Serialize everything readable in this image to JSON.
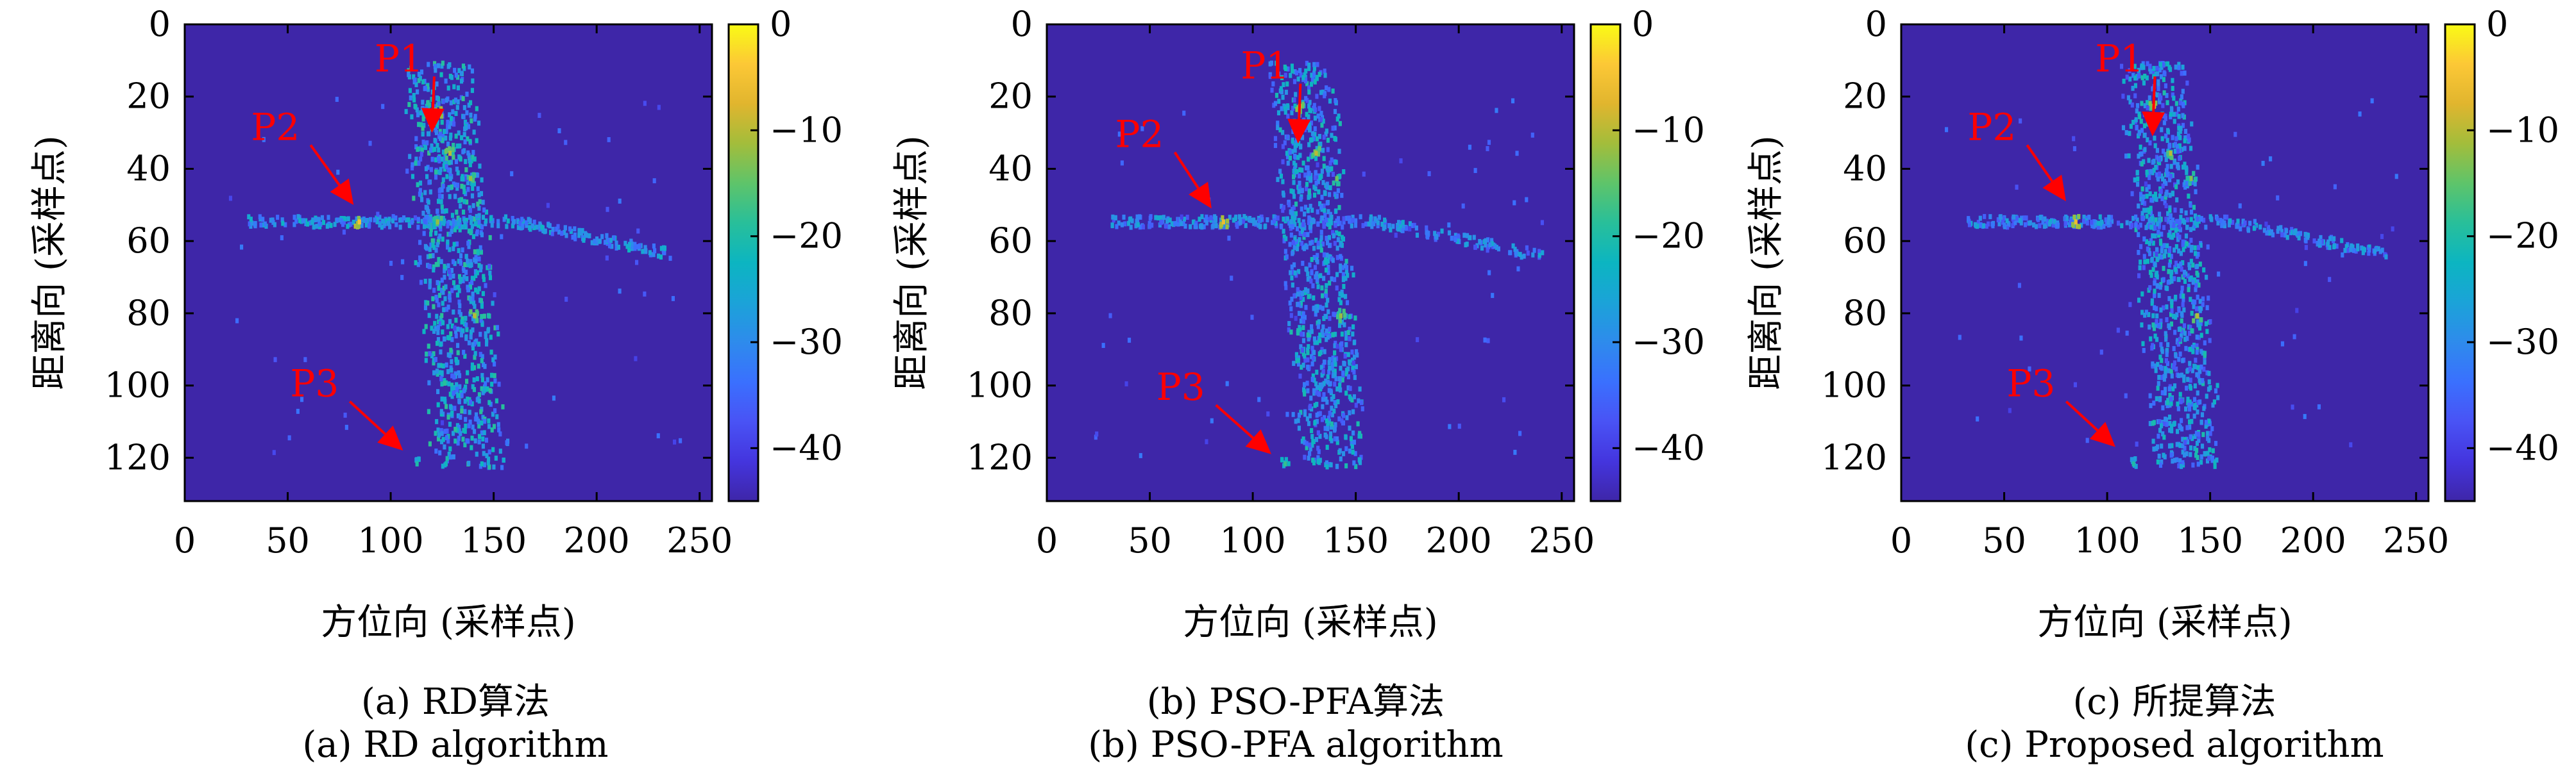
{
  "chart_data": [
    {
      "type": "heatmap",
      "caption_cn": "(a) RD算法",
      "caption_en": "(a) RD algorithm",
      "xlabel": "方位向 (采样点)",
      "ylabel": "距离向 (采样点)",
      "xlim": [
        0,
        256
      ],
      "ylim": [
        132,
        0
      ],
      "xticks": [
        0,
        50,
        100,
        150,
        200,
        250
      ],
      "yticks": [
        0,
        20,
        40,
        60,
        80,
        100,
        120
      ],
      "colorbar": {
        "range": [
          -45,
          0
        ],
        "ticks": [
          0,
          -10,
          -20,
          -30,
          -40
        ],
        "colormap": "parula"
      },
      "background_db": -45,
      "annotations": [
        {
          "label": "P1",
          "target": [
            120,
            30
          ],
          "text_at": [
            104,
            13
          ]
        },
        {
          "label": "P2",
          "target": [
            82,
            50
          ],
          "text_at": [
            44,
            32
          ]
        },
        {
          "label": "P3",
          "target": [
            106,
            118
          ],
          "text_at": [
            63,
            103
          ]
        }
      ],
      "features": {
        "fuselage": {
          "x": [
            110,
            150
          ],
          "y": [
            10,
            122
          ],
          "level_db": -22
        },
        "wing": {
          "x": [
            30,
            235
          ],
          "y": 54,
          "level_db": -24
        },
        "bright_points": [
          {
            "x": 122,
            "y": 24,
            "value_db": -6
          },
          {
            "x": 84,
            "y": 54,
            "value_db": -5
          },
          {
            "x": 128,
            "y": 35,
            "value_db": -10
          },
          {
            "x": 138,
            "y": 42,
            "value_db": -12
          },
          {
            "x": 140,
            "y": 80,
            "value_db": -10
          },
          {
            "x": 122,
            "y": 54,
            "value_db": -12
          },
          {
            "x": 112,
            "y": 121,
            "value_db": -20
          }
        ]
      }
    },
    {
      "type": "heatmap",
      "caption_cn": "(b) PSO-PFA算法",
      "caption_en": "(b) PSO-PFA algorithm",
      "xlabel": "方位向 (采样点)",
      "ylabel": "距离向 (采样点)",
      "xlim": [
        0,
        256
      ],
      "ylim": [
        132,
        0
      ],
      "xticks": [
        0,
        50,
        100,
        150,
        200,
        250
      ],
      "yticks": [
        0,
        20,
        40,
        60,
        80,
        100,
        120
      ],
      "colorbar": {
        "range": [
          -45,
          0
        ],
        "ticks": [
          0,
          -10,
          -20,
          -30,
          -40
        ],
        "colormap": "parula"
      },
      "background_db": -45,
      "annotations": [
        {
          "label": "P1",
          "target": [
            122,
            33
          ],
          "text_at": [
            106,
            15
          ]
        },
        {
          "label": "P2",
          "target": [
            80,
            51
          ],
          "text_at": [
            45,
            34
          ]
        },
        {
          "label": "P3",
          "target": [
            109,
            119
          ],
          "text_at": [
            65,
            104
          ]
        }
      ],
      "features": {
        "fuselage": {
          "x": [
            114,
            150
          ],
          "y": [
            10,
            122
          ],
          "level_db": -24
        },
        "wing": {
          "x": [
            30,
            240
          ],
          "y": 54,
          "level_db": -26
        },
        "bright_points": [
          {
            "x": 122,
            "y": 22,
            "value_db": -8
          },
          {
            "x": 85,
            "y": 54,
            "value_db": -6
          },
          {
            "x": 130,
            "y": 35,
            "value_db": -10
          },
          {
            "x": 140,
            "y": 42,
            "value_db": -14
          },
          {
            "x": 142,
            "y": 80,
            "value_db": -12
          },
          {
            "x": 115,
            "y": 121,
            "value_db": -18
          }
        ]
      }
    },
    {
      "type": "heatmap",
      "caption_cn": "(c) 所提算法",
      "caption_en": "(c) Proposed algorithm",
      "xlabel": "方位向 (采样点)",
      "ylabel": "距离向 (采样点)",
      "xlim": [
        0,
        256
      ],
      "ylim": [
        132,
        0
      ],
      "xticks": [
        0,
        50,
        100,
        150,
        200,
        250
      ],
      "yticks": [
        0,
        20,
        40,
        60,
        80,
        100,
        120
      ],
      "colorbar": {
        "range": [
          -45,
          0
        ],
        "ticks": [
          0,
          -10,
          -20,
          -30,
          -40
        ],
        "colormap": "parula"
      },
      "background_db": -45,
      "annotations": [
        {
          "label": "P1",
          "target": [
            122,
            31
          ],
          "text_at": [
            106,
            13
          ]
        },
        {
          "label": "P2",
          "target": [
            80,
            49
          ],
          "text_at": [
            44,
            32
          ]
        },
        {
          "label": "P3",
          "target": [
            104,
            117
          ],
          "text_at": [
            63,
            103
          ]
        }
      ],
      "features": {
        "fuselage": {
          "x": [
            114,
            150
          ],
          "y": [
            10,
            122
          ],
          "level_db": -24
        },
        "wing": {
          "x": [
            30,
            236
          ],
          "y": 54,
          "level_db": -26
        },
        "bright_points": [
          {
            "x": 122,
            "y": 22,
            "value_db": -8
          },
          {
            "x": 84,
            "y": 54,
            "value_db": -6
          },
          {
            "x": 130,
            "y": 35,
            "value_db": -10
          },
          {
            "x": 140,
            "y": 42,
            "value_db": -13
          },
          {
            "x": 143,
            "y": 80,
            "value_db": -10
          },
          {
            "x": 112,
            "y": 121,
            "value_db": -20
          }
        ]
      }
    }
  ],
  "colors": {
    "annotation": "#ff0000",
    "background": "#3e26a8",
    "parula": [
      "#3e26a8",
      "#4435de",
      "#4953f5",
      "#3a70fe",
      "#2e8bec",
      "#1ba3d8",
      "#0cb5c1",
      "#28bf9a",
      "#5ec46a",
      "#a3bd3b",
      "#e1b52e",
      "#fcc836",
      "#f9fb15"
    ]
  }
}
